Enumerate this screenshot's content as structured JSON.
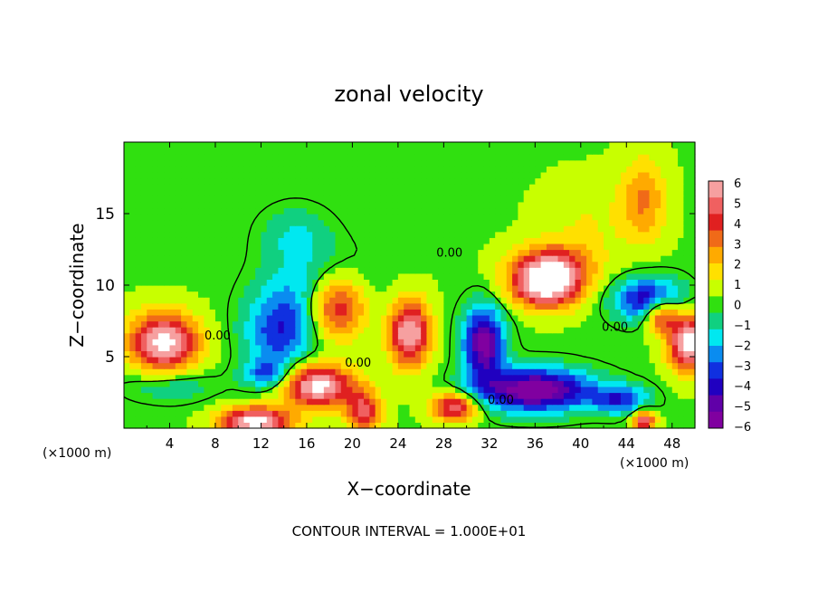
{
  "chart_data": {
    "type": "heatmap",
    "title": "zonal velocity",
    "xlabel": "X−coordinate",
    "ylabel": "Z−coordinate",
    "x_unit_label": "(×1000 m)",
    "z_unit_label": "(×1000 m)",
    "xlim": [
      0,
      50
    ],
    "ylim": [
      0,
      20
    ],
    "x_ticks": [
      "4",
      "8",
      "12",
      "16",
      "20",
      "24",
      "28",
      "32",
      "36",
      "40",
      "44",
      "48"
    ],
    "y_ticks": [
      "5",
      "10",
      "15"
    ],
    "contour_interval_text": "CONTOUR INTERVAL = 1.000E+01",
    "contour_labels": [
      {
        "text": "0.00",
        "x": 28.5,
        "z": 12.0
      },
      {
        "text": "0.00",
        "x": 8.2,
        "z": 6.2
      },
      {
        "text": "0.00",
        "x": 20.5,
        "z": 4.3
      },
      {
        "text": "0.00",
        "x": 33.0,
        "z": 1.7
      },
      {
        "text": "0.00",
        "x": 43.0,
        "z": 6.8
      }
    ],
    "colorbar": {
      "ticks": [
        "6",
        "5",
        "4",
        "3",
        "2",
        "1",
        "0",
        "−1",
        "−2",
        "−3",
        "−4",
        "−5",
        "−6"
      ],
      "colors": [
        "#f6a0a0",
        "#f06060",
        "#e02020",
        "#f06a18",
        "#ffaa00",
        "#ffe000",
        "#c8ff00",
        "#30e010",
        "#10d080",
        "#00e8f0",
        "#0a8cf0",
        "#1030e0",
        "#2000c0",
        "#6000a8",
        "#8000a0"
      ]
    },
    "background_value": 0.3,
    "features": [
      {
        "x": 17.0,
        "z": 9.0,
        "sx": 4.5,
        "sz": 3.0,
        "v": -3.5
      },
      {
        "x": 13.5,
        "z": 6.5,
        "sx": 3.0,
        "sz": 2.5,
        "v": -3.0
      },
      {
        "x": 12.5,
        "z": 3.8,
        "sx": 2.0,
        "sz": 1.0,
        "v": -3.0
      },
      {
        "x": 15.0,
        "z": 13.5,
        "sx": 3.0,
        "sz": 2.0,
        "v": -1.5
      },
      {
        "x": 18.5,
        "z": 8.5,
        "sx": 2.8,
        "sz": 2.4,
        "v": 6.5
      },
      {
        "x": 3.5,
        "z": 6.0,
        "sx": 3.0,
        "sz": 2.0,
        "v": 6.5
      },
      {
        "x": 17.0,
        "z": 3.0,
        "sx": 3.0,
        "sz": 1.5,
        "v": 6.5
      },
      {
        "x": 11.5,
        "z": 0.5,
        "sx": 3.0,
        "sz": 1.0,
        "v": 6.5
      },
      {
        "x": 25.0,
        "z": 6.7,
        "sx": 1.8,
        "sz": 2.3,
        "v": 6.0
      },
      {
        "x": 21.0,
        "z": 1.2,
        "sx": 1.5,
        "sz": 1.5,
        "v": 4.5
      },
      {
        "x": 29.0,
        "z": 1.5,
        "sx": 2.0,
        "sz": 1.0,
        "v": 5.0
      },
      {
        "x": 37.0,
        "z": 10.0,
        "sx": 3.0,
        "sz": 1.6,
        "v": 6.5
      },
      {
        "x": 37.5,
        "z": 11.5,
        "sx": 3.5,
        "sz": 1.5,
        "v": 3.5
      },
      {
        "x": 36.0,
        "z": 2.7,
        "sx": 5.0,
        "sz": 1.5,
        "v": -6.5
      },
      {
        "x": 31.5,
        "z": 6.0,
        "sx": 1.8,
        "sz": 2.5,
        "v": -6.0
      },
      {
        "x": 46.0,
        "z": 9.0,
        "sx": 3.0,
        "sz": 1.5,
        "v": -5.0
      },
      {
        "x": 47.0,
        "z": 8.0,
        "sx": 1.5,
        "sz": 1.2,
        "v": 5.0
      },
      {
        "x": 49.5,
        "z": 6.0,
        "sx": 1.8,
        "sz": 2.0,
        "v": 6.5
      },
      {
        "x": 45.5,
        "z": 16.0,
        "sx": 2.0,
        "sz": 3.0,
        "v": 2.5
      },
      {
        "x": 45.5,
        "z": 0.5,
        "sx": 1.0,
        "sz": 0.8,
        "v": 5.0
      },
      {
        "x": 43.5,
        "z": 2.0,
        "sx": 2.5,
        "sz": 1.0,
        "v": -3.5
      },
      {
        "x": 40.5,
        "z": 14.5,
        "sx": 4.0,
        "sz": 3.0,
        "v": 0.9
      },
      {
        "x": 4.0,
        "z": 3.0,
        "sx": 4.0,
        "sz": 1.2,
        "v": -1.5
      }
    ]
  }
}
